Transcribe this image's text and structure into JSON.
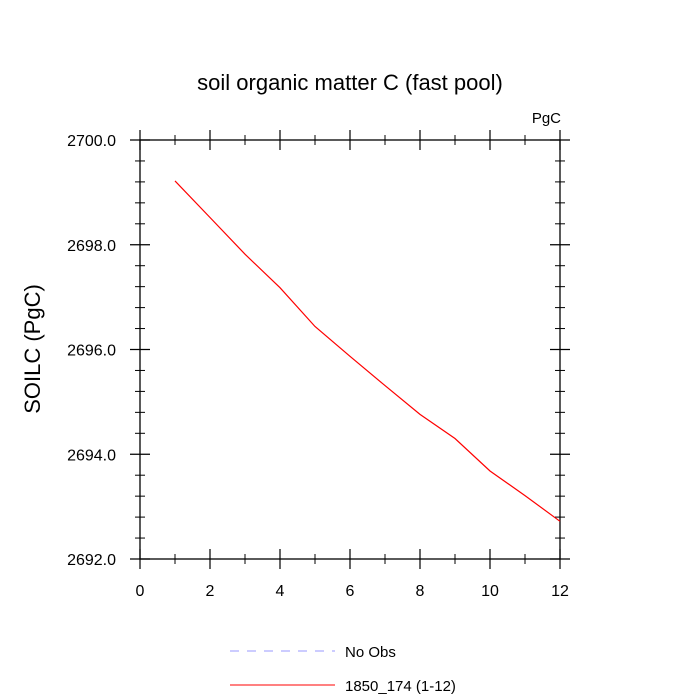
{
  "chart_data": {
    "type": "line",
    "title": "soil organic matter C (fast pool)",
    "units": "PgC",
    "ylabel": "SOILC  (PgC)",
    "xlabel": "",
    "xlim": [
      0,
      12
    ],
    "ylim": [
      2692.0,
      2700.0
    ],
    "x_ticks": [
      0,
      2,
      4,
      6,
      8,
      10,
      12
    ],
    "y_ticks": [
      2692.0,
      2694.0,
      2696.0,
      2698.0,
      2700.0
    ],
    "x_tick_labels": [
      "0",
      "2",
      "4",
      "6",
      "8",
      "10",
      "12"
    ],
    "y_tick_labels": [
      "2692.0",
      "2694.0",
      "2696.0",
      "2698.0",
      "2700.0"
    ],
    "grid": false,
    "legend_position": "bottom",
    "series": [
      {
        "name": "1850_174 (1-12)",
        "color": "#ff0000",
        "style": "solid",
        "x": [
          1,
          2,
          3,
          4,
          5,
          6,
          7,
          8,
          9,
          10,
          11,
          12
        ],
        "y": [
          2699.22,
          2698.52,
          2697.82,
          2697.18,
          2696.44,
          2695.87,
          2695.31,
          2694.76,
          2694.3,
          2693.68,
          2693.21,
          2692.72
        ]
      }
    ],
    "legend": [
      {
        "label": "No Obs",
        "color": "#9999ff",
        "style": "dashed"
      },
      {
        "label": "1850_174 (1-12)",
        "color": "#ff0000",
        "style": "solid"
      }
    ]
  }
}
